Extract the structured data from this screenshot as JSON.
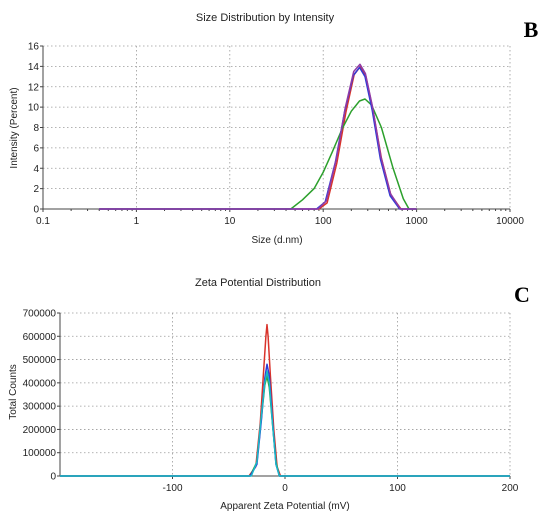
{
  "chart_data": [
    {
      "type": "line",
      "panel_label": "B",
      "title": "Size Distribution by Intensity",
      "xlabel": "Size (d.nm)",
      "ylabel": "Intensity (Percent)",
      "xscale": "log",
      "xlim": [
        0.1,
        10000
      ],
      "ylim": [
        0,
        16
      ],
      "x_ticks": [
        "0.1",
        "1",
        "10",
        "100",
        "1000",
        "10000"
      ],
      "y_ticks": [
        "0",
        "2",
        "4",
        "6",
        "8",
        "10",
        "12",
        "14",
        "16"
      ],
      "grid": true,
      "series": [
        {
          "color": "#d9332b",
          "points": [
            [
              0.4,
              0
            ],
            [
              90,
              0
            ],
            [
              110,
              0.6
            ],
            [
              140,
              4.5
            ],
            [
              175,
              9.5
            ],
            [
              215,
              13.2
            ],
            [
              250,
              14.0
            ],
            [
              285,
              13.1
            ],
            [
              340,
              9.8
            ],
            [
              420,
              5.0
            ],
            [
              530,
              1.4
            ],
            [
              680,
              0
            ],
            [
              1000,
              0
            ]
          ]
        },
        {
          "color": "#2ca02c",
          "points": [
            [
              0.4,
              0
            ],
            [
              45,
              0
            ],
            [
              60,
              0.9
            ],
            [
              80,
              2.0
            ],
            [
              100,
              3.6
            ],
            [
              125,
              5.6
            ],
            [
              160,
              7.9
            ],
            [
              200,
              9.6
            ],
            [
              245,
              10.6
            ],
            [
              280,
              10.8
            ],
            [
              330,
              10.2
            ],
            [
              420,
              8.0
            ],
            [
              560,
              4.0
            ],
            [
              720,
              1.0
            ],
            [
              830,
              0
            ],
            [
              1000,
              0
            ]
          ]
        },
        {
          "color": "#2f3bd6",
          "points": [
            [
              0.4,
              0
            ],
            [
              85,
              0
            ],
            [
              105,
              0.7
            ],
            [
              135,
              4.6
            ],
            [
              170,
              9.6
            ],
            [
              210,
              13.1
            ],
            [
              245,
              13.9
            ],
            [
              280,
              13.0
            ],
            [
              335,
              9.7
            ],
            [
              410,
              4.9
            ],
            [
              520,
              1.3
            ],
            [
              660,
              0
            ],
            [
              1000,
              0
            ]
          ]
        },
        {
          "color": "#8e3aa8",
          "points": [
            [
              0.4,
              0
            ],
            [
              88,
              0
            ],
            [
              108,
              0.8
            ],
            [
              138,
              4.9
            ],
            [
              172,
              9.9
            ],
            [
              212,
              13.5
            ],
            [
              248,
              14.2
            ],
            [
              283,
              13.3
            ],
            [
              338,
              10.0
            ],
            [
              415,
              5.1
            ],
            [
              525,
              1.5
            ],
            [
              670,
              0
            ],
            [
              1000,
              0
            ]
          ]
        }
      ]
    },
    {
      "type": "line",
      "panel_label": "C",
      "title": "Zeta Potential Distribution",
      "xlabel": "Apparent Zeta Potential (mV)",
      "ylabel": "Total Counts",
      "xscale": "linear",
      "xlim": [
        -200,
        200
      ],
      "ylim": [
        0,
        700000
      ],
      "x_ticks": [
        "-100",
        "0",
        "100",
        "200"
      ],
      "y_ticks": [
        "0",
        "100000",
        "200000",
        "300000",
        "400000",
        "500000",
        "600000",
        "700000"
      ],
      "grid": true,
      "series": [
        {
          "color": "#d9332b",
          "points": [
            [
              -200,
              0
            ],
            [
              -32,
              0
            ],
            [
              -26,
              40000
            ],
            [
              -22,
              230000
            ],
            [
              -19,
              450000
            ],
            [
              -17,
              600000
            ],
            [
              -16,
              650000
            ],
            [
              -15,
              600000
            ],
            [
              -13,
              430000
            ],
            [
              -10,
              200000
            ],
            [
              -7,
              40000
            ],
            [
              -4,
              0
            ],
            [
              200,
              0
            ]
          ]
        },
        {
          "color": "#2ca02c",
          "points": [
            [
              -200,
              0
            ],
            [
              -31,
              0
            ],
            [
              -25,
              60000
            ],
            [
              -21,
              250000
            ],
            [
              -18,
              390000
            ],
            [
              -16,
              430000
            ],
            [
              -14,
              380000
            ],
            [
              -11,
              220000
            ],
            [
              -8,
              60000
            ],
            [
              -5,
              0
            ],
            [
              200,
              0
            ]
          ]
        },
        {
          "color": "#2f3bd6",
          "points": [
            [
              -200,
              0
            ],
            [
              -31,
              0
            ],
            [
              -25,
              50000
            ],
            [
              -21,
              240000
            ],
            [
              -18,
              420000
            ],
            [
              -16,
              480000
            ],
            [
              -14,
              430000
            ],
            [
              -11,
              230000
            ],
            [
              -8,
              50000
            ],
            [
              -5,
              0
            ],
            [
              200,
              0
            ]
          ]
        },
        {
          "color": "#19b8c8",
          "points": [
            [
              -200,
              0
            ],
            [
              -30,
              0
            ],
            [
              -25,
              60000
            ],
            [
              -21,
              260000
            ],
            [
              -18,
              400000
            ],
            [
              -16,
              450000
            ],
            [
              -14,
              400000
            ],
            [
              -11,
              220000
            ],
            [
              -8,
              50000
            ],
            [
              -5,
              0
            ],
            [
              200,
              0
            ]
          ]
        }
      ]
    }
  ]
}
